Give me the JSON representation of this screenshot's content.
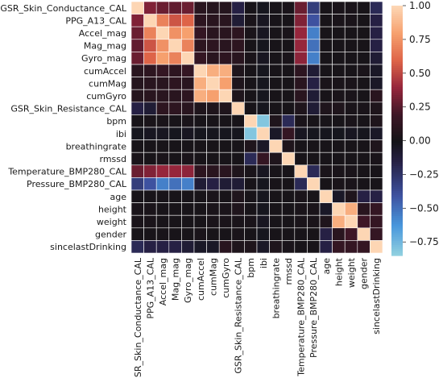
{
  "chart_data": {
    "type": "heatmap",
    "title": "",
    "xlabel": "",
    "ylabel": "",
    "labels": [
      "GSR_Skin_Conductance_CAL",
      "PPG_A13_CAL",
      "Accel_mag",
      "Mag_mag",
      "Gyro_mag",
      "cumAccel",
      "cumMag",
      "cumGyro",
      "GSR_Skin_Resistance_CAL",
      "bpm",
      "ibi",
      "breathingrate",
      "rmssd",
      "Temperature_BMP280_CAL",
      "Pressure_BMP280_CAL",
      "age",
      "height",
      "weight",
      "gender",
      "sincelastDrinking"
    ],
    "matrix": [
      [
        1.0,
        0.35,
        0.3,
        0.28,
        0.3,
        0.1,
        0.08,
        0.08,
        -0.15,
        0.02,
        -0.02,
        0.02,
        0.03,
        0.3,
        -0.3,
        0.02,
        0.03,
        0.03,
        0.02,
        -0.2
      ],
      [
        0.35,
        1.0,
        0.7,
        0.55,
        0.6,
        0.12,
        0.1,
        0.1,
        -0.1,
        0.03,
        -0.03,
        0.02,
        0.02,
        0.35,
        -0.4,
        0.02,
        0.03,
        0.03,
        0.02,
        -0.15
      ],
      [
        0.3,
        0.7,
        1.0,
        0.75,
        0.8,
        0.15,
        0.1,
        0.1,
        0.12,
        0.03,
        -0.03,
        0.02,
        0.03,
        0.4,
        -0.55,
        0.02,
        0.02,
        0.02,
        0.02,
        -0.15
      ],
      [
        0.28,
        0.55,
        0.75,
        1.0,
        0.7,
        0.12,
        0.12,
        0.1,
        0.12,
        0.02,
        -0.02,
        0.02,
        0.02,
        0.4,
        -0.5,
        0.02,
        0.02,
        0.02,
        0.02,
        -0.15
      ],
      [
        0.3,
        0.6,
        0.8,
        0.7,
        1.0,
        0.15,
        0.1,
        0.12,
        0.1,
        0.03,
        -0.03,
        0.02,
        0.03,
        0.38,
        -0.55,
        0.02,
        0.02,
        0.02,
        0.02,
        -0.1
      ],
      [
        0.1,
        0.12,
        0.15,
        0.12,
        0.15,
        1.0,
        0.85,
        0.85,
        0.05,
        0.02,
        -0.02,
        0.02,
        0.02,
        0.12,
        -0.1,
        0.02,
        0.02,
        0.02,
        0.03,
        -0.05
      ],
      [
        0.08,
        0.1,
        0.1,
        0.12,
        0.1,
        0.85,
        1.0,
        0.8,
        0.05,
        0.02,
        -0.02,
        0.02,
        0.02,
        0.1,
        -0.15,
        0.03,
        0.03,
        0.03,
        0.02,
        -0.05
      ],
      [
        0.08,
        0.1,
        0.1,
        0.1,
        0.12,
        0.85,
        0.8,
        1.0,
        0.05,
        0.02,
        -0.02,
        0.02,
        0.02,
        0.1,
        -0.1,
        0.02,
        0.03,
        0.03,
        0.02,
        0.1
      ],
      [
        -0.15,
        -0.1,
        0.12,
        0.12,
        0.1,
        0.05,
        0.05,
        0.05,
        1.0,
        0.02,
        -0.02,
        0.02,
        0.02,
        0.05,
        -0.1,
        0.05,
        0.05,
        0.03,
        0.03,
        0.05
      ],
      [
        0.02,
        0.03,
        0.03,
        0.02,
        0.03,
        0.02,
        0.02,
        0.02,
        0.02,
        1.0,
        -0.8,
        0.05,
        -0.2,
        0.03,
        0.02,
        0.02,
        0.02,
        0.03,
        0.02,
        0.05
      ],
      [
        -0.02,
        -0.03,
        -0.03,
        -0.02,
        -0.03,
        -0.02,
        -0.02,
        -0.02,
        -0.02,
        -0.8,
        1.0,
        -0.05,
        0.15,
        -0.03,
        -0.02,
        -0.02,
        -0.02,
        -0.03,
        -0.02,
        -0.05
      ],
      [
        0.02,
        0.02,
        0.02,
        0.02,
        0.02,
        0.02,
        0.02,
        0.02,
        0.02,
        0.05,
        -0.05,
        1.0,
        0.05,
        0.02,
        0.02,
        0.02,
        0.02,
        0.02,
        0.02,
        0.05
      ],
      [
        0.03,
        0.02,
        0.03,
        0.02,
        0.03,
        0.02,
        0.02,
        0.02,
        0.02,
        -0.2,
        0.15,
        0.05,
        1.0,
        0.02,
        0.02,
        0.02,
        0.02,
        0.02,
        0.02,
        0.03
      ],
      [
        0.3,
        0.35,
        0.4,
        0.4,
        0.38,
        0.12,
        0.1,
        0.1,
        0.05,
        0.03,
        -0.03,
        0.02,
        0.02,
        1.0,
        -0.2,
        0.03,
        0.03,
        0.03,
        0.02,
        0.02
      ],
      [
        -0.3,
        -0.4,
        -0.55,
        -0.5,
        -0.55,
        -0.1,
        -0.15,
        -0.1,
        -0.1,
        0.02,
        -0.02,
        0.02,
        0.02,
        -0.2,
        1.0,
        0.02,
        0.03,
        0.03,
        0.02,
        0.02
      ],
      [
        0.02,
        0.02,
        0.02,
        0.02,
        0.02,
        0.02,
        0.03,
        0.02,
        0.05,
        0.02,
        -0.02,
        0.02,
        0.02,
        0.03,
        0.02,
        1.0,
        -0.05,
        0.05,
        -0.15,
        -0.15
      ],
      [
        0.03,
        0.03,
        0.02,
        0.02,
        0.02,
        0.02,
        0.03,
        0.03,
        0.05,
        0.02,
        -0.02,
        0.02,
        0.02,
        0.03,
        0.03,
        -0.05,
        1.0,
        0.85,
        0.1,
        0.15
      ],
      [
        0.03,
        0.03,
        0.02,
        0.02,
        0.02,
        0.02,
        0.03,
        0.03,
        0.03,
        0.03,
        -0.03,
        0.02,
        0.02,
        0.03,
        0.03,
        0.05,
        0.85,
        1.0,
        0.2,
        0.15
      ],
      [
        0.02,
        0.02,
        0.02,
        0.02,
        0.02,
        0.03,
        0.02,
        0.02,
        0.03,
        0.02,
        -0.02,
        0.02,
        0.02,
        0.02,
        0.02,
        -0.15,
        0.1,
        0.2,
        1.0,
        0.15
      ],
      [
        -0.2,
        -0.15,
        -0.15,
        -0.15,
        -0.1,
        -0.05,
        -0.05,
        0.1,
        0.05,
        0.05,
        -0.05,
        0.05,
        0.03,
        0.02,
        0.02,
        -0.15,
        0.15,
        0.15,
        0.15,
        1.0
      ]
    ],
    "colorbar": {
      "vmin": -0.85,
      "vmax": 1.0,
      "ticks": [
        -0.75,
        -0.5,
        -0.25,
        0.0,
        0.25,
        0.5,
        0.75,
        1.0
      ],
      "tick_labels": [
        "−0.75",
        "−0.50",
        "−0.25",
        "0.00",
        "0.25",
        "0.50",
        "0.75",
        "1.00"
      ]
    },
    "colormap": "icefire",
    "grid": true,
    "gridline_color": "#ffffff"
  }
}
